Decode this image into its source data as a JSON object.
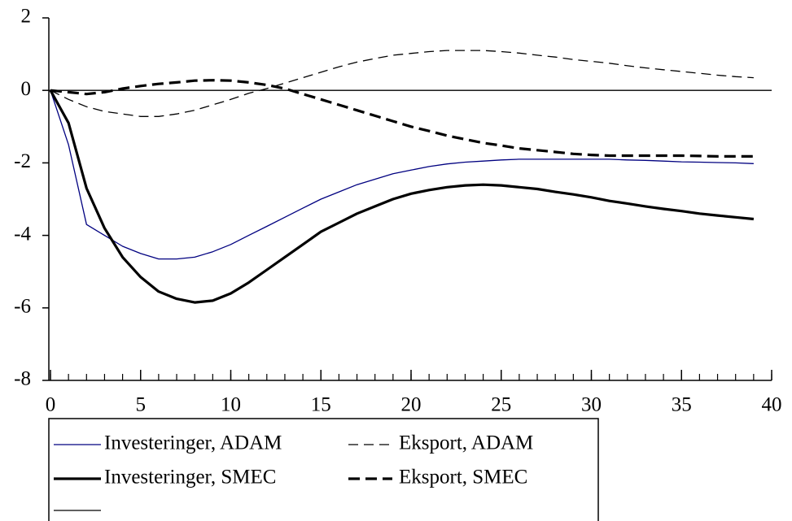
{
  "chart_data": {
    "type": "line",
    "x": [
      0,
      1,
      2,
      3,
      4,
      5,
      6,
      7,
      8,
      9,
      10,
      11,
      12,
      13,
      14,
      15,
      16,
      17,
      18,
      19,
      20,
      21,
      22,
      23,
      24,
      25,
      26,
      27,
      28,
      29,
      30,
      31,
      32,
      33,
      34,
      35,
      36,
      37,
      38,
      39
    ],
    "series": [
      {
        "name": "Investeringer, ADAM",
        "color": "#000080",
        "style": "solid",
        "weight": "thin",
        "values": [
          0,
          -1.5,
          -3.7,
          -4.0,
          -4.3,
          -4.5,
          -4.65,
          -4.65,
          -4.6,
          -4.45,
          -4.25,
          -4.0,
          -3.75,
          -3.5,
          -3.25,
          -3.0,
          -2.8,
          -2.6,
          -2.45,
          -2.3,
          -2.2,
          -2.1,
          -2.03,
          -1.98,
          -1.95,
          -1.92,
          -1.9,
          -1.9,
          -1.9,
          -1.9,
          -1.9,
          -1.9,
          -1.92,
          -1.93,
          -1.95,
          -1.97,
          -1.98,
          -1.99,
          -2.0,
          -2.02
        ]
      },
      {
        "name": "Eksport, ADAM",
        "color": "#000000",
        "style": "dashed",
        "weight": "thin",
        "values": [
          0,
          -0.25,
          -0.45,
          -0.58,
          -0.65,
          -0.72,
          -0.72,
          -0.65,
          -0.55,
          -0.4,
          -0.25,
          -0.08,
          0.05,
          0.2,
          0.35,
          0.5,
          0.65,
          0.78,
          0.88,
          0.97,
          1.02,
          1.07,
          1.1,
          1.1,
          1.1,
          1.07,
          1.03,
          0.97,
          0.92,
          0.85,
          0.8,
          0.75,
          0.68,
          0.62,
          0.57,
          0.52,
          0.47,
          0.42,
          0.38,
          0.35
        ]
      },
      {
        "name": "Investeringer, SMEC",
        "color": "#000000",
        "style": "solid",
        "weight": "thick",
        "values": [
          0,
          -0.9,
          -2.7,
          -3.8,
          -4.6,
          -5.15,
          -5.55,
          -5.75,
          -5.85,
          -5.8,
          -5.6,
          -5.3,
          -4.95,
          -4.6,
          -4.25,
          -3.9,
          -3.65,
          -3.4,
          -3.2,
          -3.0,
          -2.85,
          -2.75,
          -2.67,
          -2.62,
          -2.6,
          -2.62,
          -2.67,
          -2.72,
          -2.8,
          -2.87,
          -2.95,
          -3.05,
          -3.12,
          -3.2,
          -3.27,
          -3.33,
          -3.4,
          -3.45,
          -3.5,
          -3.55
        ]
      },
      {
        "name": "Eksport, SMEC",
        "color": "#000000",
        "style": "dashed",
        "weight": "thick",
        "values": [
          0,
          -0.05,
          -0.1,
          -0.05,
          0.05,
          0.12,
          0.18,
          0.22,
          0.27,
          0.28,
          0.27,
          0.22,
          0.15,
          0.05,
          -0.1,
          -0.25,
          -0.4,
          -0.55,
          -0.7,
          -0.85,
          -1.0,
          -1.12,
          -1.25,
          -1.35,
          -1.45,
          -1.52,
          -1.6,
          -1.65,
          -1.7,
          -1.75,
          -1.78,
          -1.8,
          -1.8,
          -1.8,
          -1.8,
          -1.8,
          -1.81,
          -1.82,
          -1.82,
          -1.82
        ]
      }
    ],
    "hline": {
      "y": 0,
      "color": "#000000"
    },
    "xlim": [
      0,
      40
    ],
    "xticks": [
      0,
      5,
      10,
      15,
      20,
      25,
      30,
      35,
      40
    ],
    "ylim": [
      -8,
      2
    ],
    "yticks": [
      -8,
      -6,
      -4,
      -2,
      0,
      2
    ]
  }
}
